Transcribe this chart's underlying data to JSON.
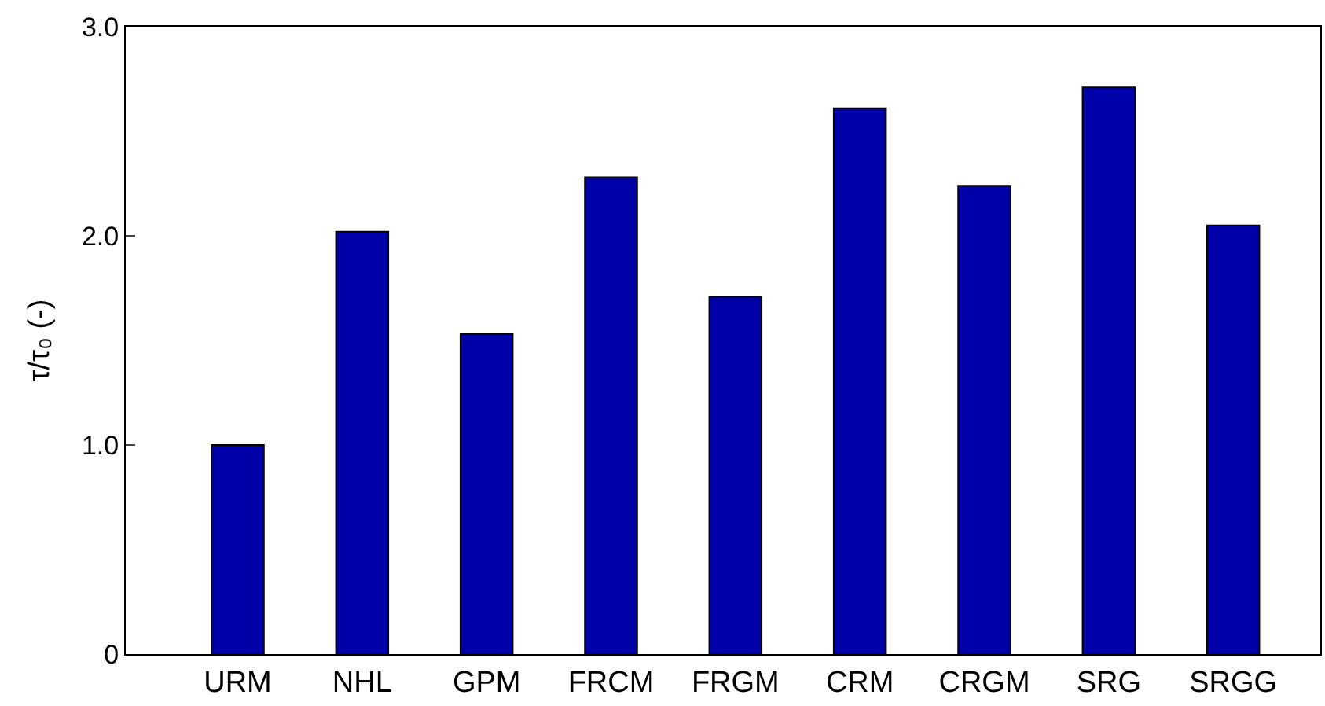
{
  "chart_data": {
    "type": "bar",
    "ylabel": "τ/τ₀ (-)",
    "categories": [
      "URM",
      "NHL",
      "GPM",
      "FRCM",
      "FRGM",
      "CRM",
      "CRGM",
      "SRG",
      "SRGG"
    ],
    "values": [
      1.0,
      2.02,
      1.53,
      2.28,
      1.71,
      2.61,
      2.24,
      2.71,
      2.05
    ],
    "color": "#0000a8",
    "ylim": [
      0,
      3.0
    ],
    "yticks": [
      0,
      {
        "value": 1.0,
        "label": "1.0"
      },
      {
        "value": 2.0,
        "label": "2.0"
      },
      {
        "value": 3.0,
        "label": "3.0"
      }
    ]
  }
}
